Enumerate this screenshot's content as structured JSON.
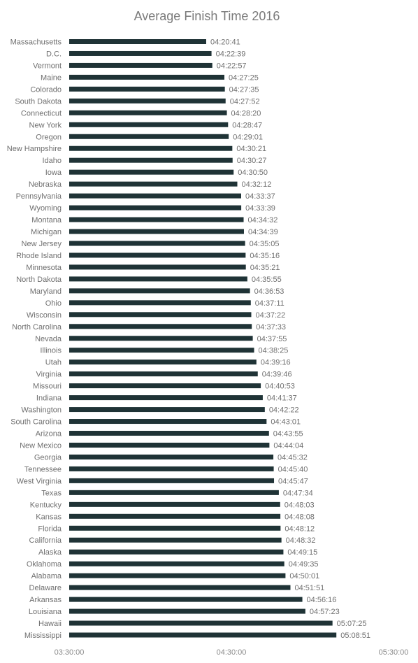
{
  "chart_data": {
    "type": "bar",
    "orientation": "horizontal",
    "title": "Average Finish Time 2016",
    "xlabel": "",
    "ylabel": "",
    "bar_color": "#1f3336",
    "grid": false,
    "legend": "none",
    "xlim": [
      "03:30:00",
      "05:30:00"
    ],
    "x_ticks": [
      "03:30:00",
      "04:30:00",
      "05:30:00"
    ],
    "categories": [
      "Massachusetts",
      "D.C.",
      "Vermont",
      "Maine",
      "Colorado",
      "South Dakota",
      "Connecticut",
      "New York",
      "Oregon",
      "New Hampshire",
      "Idaho",
      "Iowa",
      "Nebraska",
      "Pennsylvania",
      "Wyoming",
      "Montana",
      "Michigan",
      "New Jersey",
      "Rhode Island",
      "Minnesota",
      "North Dakota",
      "Maryland",
      "Ohio",
      "Wisconsin",
      "North Carolina",
      "Nevada",
      "Illinois",
      "Utah",
      "Virginia",
      "Missouri",
      "Indiana",
      "Washington",
      "South Carolina",
      "Arizona",
      "New Mexico",
      "Georgia",
      "Tennessee",
      "West Virginia",
      "Texas",
      "Kentucky",
      "Kansas",
      "Florida",
      "California",
      "Alaska",
      "Oklahoma",
      "Alabama",
      "Delaware",
      "Arkansas",
      "Louisiana",
      "Hawaii",
      "Mississippi"
    ],
    "values": [
      "04:20:41",
      "04:22:39",
      "04:22:57",
      "04:27:25",
      "04:27:35",
      "04:27:52",
      "04:28:20",
      "04:28:47",
      "04:29:01",
      "04:30:21",
      "04:30:27",
      "04:30:50",
      "04:32:12",
      "04:33:37",
      "04:33:39",
      "04:34:32",
      "04:34:39",
      "04:35:05",
      "04:35:16",
      "04:35:21",
      "04:35:55",
      "04:36:53",
      "04:37:11",
      "04:37:22",
      "04:37:33",
      "04:37:55",
      "04:38:25",
      "04:39:16",
      "04:39:46",
      "04:40:53",
      "04:41:37",
      "04:42:22",
      "04:43:01",
      "04:43:55",
      "04:44:04",
      "04:45:32",
      "04:45:40",
      "04:45:47",
      "04:47:34",
      "04:48:03",
      "04:48:08",
      "04:48:12",
      "04:48:32",
      "04:49:15",
      "04:49:35",
      "04:50:01",
      "04:51:51",
      "04:56:16",
      "04:57:23",
      "05:07:25",
      "05:08:51"
    ]
  }
}
